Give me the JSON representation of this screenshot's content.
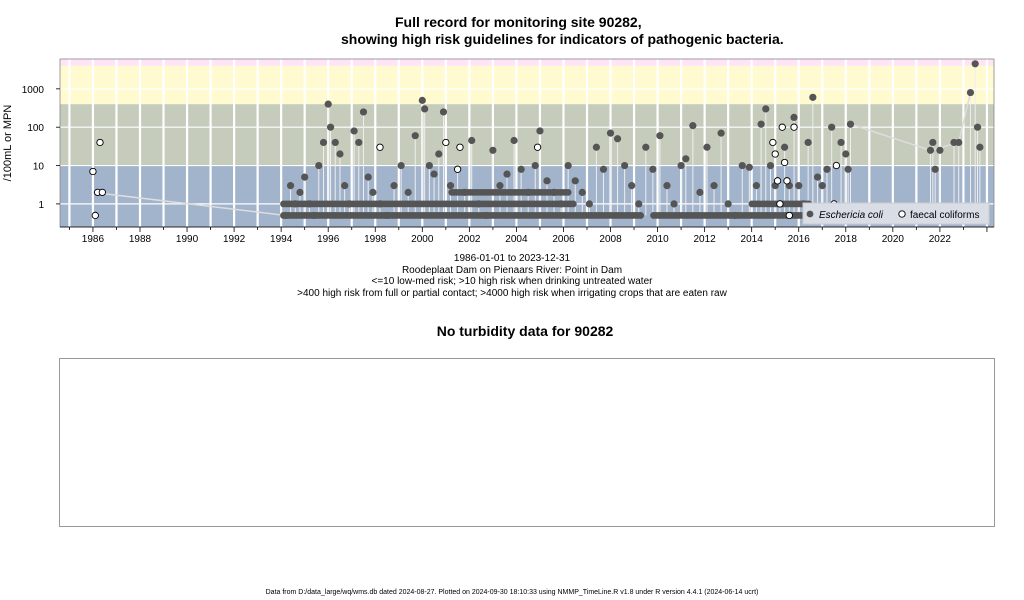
{
  "chart_data": [
    {
      "type": "scatter",
      "title_line1": "Full record for monitoring site 90282,",
      "title_line2": "showing high risk guidelines for indicators of pathogenic bacteria.",
      "ylabel": "/100mL or MPN",
      "yscale": "log",
      "ylim": [
        0.25,
        6000
      ],
      "yticks": [
        "1",
        "10",
        "100",
        "1000"
      ],
      "xlim": [
        1984.6,
        2024.3
      ],
      "xticks": [
        "1986",
        "1988",
        "1990",
        "1992",
        "1994",
        "1996",
        "1998",
        "2000",
        "2002",
        "2004",
        "2006",
        "2008",
        "2010",
        "2012",
        "2014",
        "2016",
        "2018",
        "2020",
        "2022"
      ],
      "bands": [
        {
          "from": 0.25,
          "to": 10,
          "color": "#a2b3cc"
        },
        {
          "from": 10,
          "to": 400,
          "color": "#c5ccbc"
        },
        {
          "from": 400,
          "to": 4000,
          "color": "#fffad0"
        },
        {
          "from": 4000,
          "to": 6000,
          "color": "#ffe4f7"
        }
      ],
      "legend": {
        "placement": "bottom-right",
        "ecoli": "Eschericia coli",
        "faecal": "faecal coliforms"
      },
      "series": [
        {
          "name": "Eschericia coli",
          "marker": "filled",
          "color": "#555555",
          "points": [
            [
              1994.2,
              0.5
            ],
            [
              1994.4,
              3
            ],
            [
              1994.6,
              1
            ],
            [
              1994.8,
              2
            ],
            [
              1995.0,
              5
            ],
            [
              1995.2,
              1
            ],
            [
              1995.4,
              0.5
            ],
            [
              1995.6,
              10
            ],
            [
              1995.8,
              40
            ],
            [
              1996.0,
              400
            ],
            [
              1996.1,
              100
            ],
            [
              1996.3,
              40
            ],
            [
              1996.5,
              20
            ],
            [
              1996.7,
              3
            ],
            [
              1996.9,
              1
            ],
            [
              1997.1,
              80
            ],
            [
              1997.3,
              40
            ],
            [
              1997.5,
              250
            ],
            [
              1997.7,
              5
            ],
            [
              1997.9,
              2
            ],
            [
              1998.2,
              1
            ],
            [
              1998.5,
              0.5
            ],
            [
              1998.8,
              3
            ],
            [
              1999.1,
              10
            ],
            [
              1999.4,
              2
            ],
            [
              1999.7,
              60
            ],
            [
              2000.0,
              500
            ],
            [
              2000.1,
              300
            ],
            [
              2000.3,
              10
            ],
            [
              2000.5,
              6
            ],
            [
              2000.7,
              20
            ],
            [
              2000.9,
              250
            ],
            [
              2001.2,
              3
            ],
            [
              2001.5,
              8
            ],
            [
              2001.8,
              2
            ],
            [
              2002.1,
              45
            ],
            [
              2002.4,
              1
            ],
            [
              2002.7,
              0.5
            ],
            [
              2003.0,
              25
            ],
            [
              2003.3,
              3
            ],
            [
              2003.6,
              6
            ],
            [
              2003.9,
              45
            ],
            [
              2004.2,
              8
            ],
            [
              2004.5,
              2
            ],
            [
              2004.8,
              10
            ],
            [
              2005.0,
              80
            ],
            [
              2005.3,
              4
            ],
            [
              2005.6,
              2
            ],
            [
              2005.9,
              1
            ],
            [
              2006.2,
              10
            ],
            [
              2006.5,
              4
            ],
            [
              2006.8,
              2
            ],
            [
              2007.1,
              1
            ],
            [
              2007.4,
              30
            ],
            [
              2007.7,
              8
            ],
            [
              2008.0,
              70
            ],
            [
              2008.3,
              50
            ],
            [
              2008.6,
              10
            ],
            [
              2008.9,
              3
            ],
            [
              2009.2,
              1
            ],
            [
              2009.5,
              30
            ],
            [
              2009.8,
              8
            ],
            [
              2010.1,
              60
            ],
            [
              2010.4,
              3
            ],
            [
              2010.7,
              1
            ],
            [
              2011.0,
              10
            ],
            [
              2011.2,
              15
            ],
            [
              2011.5,
              110
            ],
            [
              2011.8,
              2
            ],
            [
              2012.1,
              30
            ],
            [
              2012.4,
              3
            ],
            [
              2012.7,
              70
            ],
            [
              2013.0,
              1
            ],
            [
              2013.3,
              0.5
            ],
            [
              2013.6,
              10
            ],
            [
              2013.9,
              9
            ],
            [
              2014.2,
              3
            ],
            [
              2014.4,
              120
            ],
            [
              2014.6,
              300
            ],
            [
              2014.8,
              10
            ],
            [
              2015.0,
              3
            ],
            [
              2015.2,
              1
            ],
            [
              2015.4,
              30
            ],
            [
              2015.6,
              3
            ],
            [
              2015.8,
              180
            ],
            [
              2016.0,
              3
            ],
            [
              2016.2,
              1
            ],
            [
              2016.4,
              40
            ],
            [
              2016.6,
              600
            ],
            [
              2016.8,
              5
            ],
            [
              2017.0,
              3
            ],
            [
              2017.2,
              8
            ],
            [
              2017.4,
              100
            ],
            [
              2017.6,
              0.5
            ],
            [
              2017.8,
              40
            ],
            [
              2018.0,
              20
            ],
            [
              2018.1,
              8
            ],
            [
              2018.2,
              120
            ],
            [
              2021.6,
              25
            ],
            [
              2021.7,
              40
            ],
            [
              2021.8,
              8
            ],
            [
              2022.0,
              25
            ],
            [
              2022.6,
              40
            ],
            [
              2022.8,
              40
            ],
            [
              2023.3,
              800
            ],
            [
              2023.5,
              4500
            ],
            [
              2023.6,
              100
            ],
            [
              2023.7,
              30
            ]
          ]
        },
        {
          "name": "faecal coliforms",
          "marker": "open",
          "color": "#000000",
          "points": [
            [
              1986.0,
              7
            ],
            [
              1986.1,
              0.5
            ],
            [
              1986.2,
              2
            ],
            [
              1986.3,
              40
            ],
            [
              1986.4,
              2
            ],
            [
              1998.2,
              30
            ],
            [
              2001.0,
              40
            ],
            [
              2001.5,
              8
            ],
            [
              2001.6,
              30
            ],
            [
              2004.9,
              30
            ],
            [
              2014.9,
              40
            ],
            [
              2015.0,
              20
            ],
            [
              2015.1,
              4
            ],
            [
              2015.2,
              1
            ],
            [
              2015.3,
              100
            ],
            [
              2015.4,
              12
            ],
            [
              2015.5,
              4
            ],
            [
              2015.6,
              0.5
            ],
            [
              2015.8,
              100
            ],
            [
              2017.5,
              1
            ],
            [
              2017.6,
              10
            ]
          ]
        }
      ]
    },
    {
      "type": "line",
      "title": "No turbidity data for 90282"
    }
  ],
  "caption": {
    "line1": "1986-01-01 to 2023-12-31",
    "line2": "Roodeplaat Dam on Pienaars River: Point in Dam",
    "line3": "<=10 low-med risk; >10 high risk when drinking untreated water",
    "line4": ">400 high risk from full or partial contact; >4000 high risk when irrigating crops that are eaten raw"
  },
  "footer": "Data from D:/data_large/wq/wms.db dated 2024-08-27. Plotted on 2024-09-30 18:10:33 using NMMP_TimeLine.R v1.8 under R version 4.4.1 (2024-06-14 ucrt)"
}
